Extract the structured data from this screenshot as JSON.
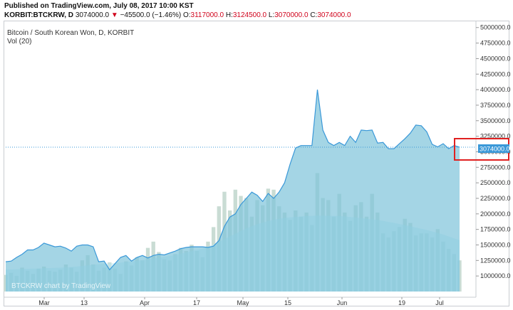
{
  "header": {
    "published": "Published on TradingView.com, July 08, 2017 10:00 KST",
    "symbol": "KORBIT:BTCKRW, D",
    "last": "3074000.0",
    "arrow": "▼",
    "change": "−45500.0 (−1.46%)",
    "o_label": "O:",
    "o_value": "3117000.0",
    "h_label": "H:",
    "h_value": "3124500.0",
    "l_label": "L:",
    "l_value": "3070000.0",
    "c_label": "C:",
    "c_value": "3074000.0"
  },
  "legend": {
    "title": "Bitcoin / South Korean Won, D, KORBIT",
    "volume": "Vol (20)"
  },
  "watermark": "BTCKRW chart by TradingView",
  "price_label": "3074000.0",
  "colors": {
    "line": "#3a98d8",
    "area": "#7ec3da",
    "volume_bars": "#c9dcd4",
    "volume_ma": "#bfe9f3",
    "price_line": "#3a98d8",
    "highlight_box": "#e02020"
  },
  "chart_data": {
    "type": "area",
    "title": "Bitcoin / South Korean Won, D, KORBIT",
    "ylim": [
      750000,
      5100000
    ],
    "y_axis_position": "right",
    "y_ticks": [
      "1000000.0",
      "1250000.0",
      "1500000.0",
      "1750000.0",
      "2000000.0",
      "2250000.0",
      "2500000.0",
      "2750000.0",
      "3000000.0",
      "3250000.0",
      "3500000.0",
      "3750000.0",
      "4000000.0",
      "4250000.0",
      "4500000.0",
      "4750000.0",
      "5000000.0"
    ],
    "x_ticks": [
      "Mar",
      "13",
      "Apr",
      "17",
      "May",
      "15",
      "Jun",
      "19",
      "Jul"
    ],
    "grid": false,
    "series": [
      {
        "name": "BTCKRW",
        "values": [
          1230000,
          1240000,
          1300000,
          1350000,
          1420000,
          1420000,
          1460000,
          1530000,
          1500000,
          1470000,
          1480000,
          1450000,
          1400000,
          1480000,
          1500000,
          1500000,
          1470000,
          1230000,
          1240000,
          1100000,
          1200000,
          1300000,
          1330000,
          1240000,
          1300000,
          1330000,
          1290000,
          1330000,
          1350000,
          1340000,
          1370000,
          1400000,
          1440000,
          1460000,
          1470000,
          1470000,
          1470000,
          1460000,
          1480000,
          1570000,
          1800000,
          1950000,
          2000000,
          2150000,
          2250000,
          2350000,
          2300000,
          2200000,
          2330000,
          2250000,
          2350000,
          2500000,
          2800000,
          3060000,
          3100000,
          3100000,
          3100000,
          4000000,
          3350000,
          3150000,
          3100000,
          3150000,
          3100000,
          3250000,
          3150000,
          3350000,
          3340000,
          3350000,
          3140000,
          3150000,
          3050000,
          3050000,
          3130000,
          3210000,
          3300000,
          3430000,
          3420000,
          3320000,
          3120000,
          3080000,
          3130000,
          3050000,
          3100000,
          3074000
        ],
        "color": "#3a98d8"
      }
    ],
    "volume": {
      "name": "Vol (20)",
      "values": [
        160000,
        180000,
        150000,
        230000,
        200000,
        170000,
        220000,
        240000,
        200000,
        190000,
        210000,
        260000,
        230000,
        190000,
        300000,
        350000,
        260000,
        200000,
        230000,
        280000,
        220000,
        170000,
        290000,
        250000,
        330000,
        300000,
        420000,
        480000,
        380000,
        310000,
        300000,
        360000,
        420000,
        390000,
        450000,
        390000,
        330000,
        480000,
        620000,
        820000,
        960000,
        780000,
        980000,
        920000,
        900000,
        720000,
        880000,
        830000,
        990000,
        980000,
        820000,
        760000,
        690000,
        780000,
        720000,
        760000,
        640000,
        1140000,
        900000,
        880000,
        720000,
        940000,
        760000,
        680000,
        830000,
        860000,
        720000,
        940000,
        760000,
        560000,
        520000,
        580000,
        620000,
        700000,
        660000,
        540000,
        560000,
        560000,
        520000,
        600000,
        480000,
        410000,
        360000,
        300000
      ],
      "ma_values": [
        210000,
        212000,
        214000,
        216000,
        218000,
        220000,
        222000,
        224000,
        226000,
        228000,
        230000,
        232000,
        236000,
        240000,
        246000,
        252000,
        258000,
        262000,
        266000,
        270000,
        274000,
        278000,
        284000,
        290000,
        296000,
        302000,
        310000,
        318000,
        326000,
        334000,
        342000,
        352000,
        364000,
        376000,
        388000,
        400000,
        414000,
        432000,
        454000,
        478000,
        504000,
        530000,
        556000,
        582000,
        606000,
        628000,
        648000,
        664000,
        678000,
        690000,
        700000,
        708000,
        714000,
        718000,
        722000,
        726000,
        728000,
        730000,
        730000,
        729000,
        728000,
        726000,
        722000,
        718000,
        712000,
        706000,
        700000,
        694000,
        688000,
        680000,
        670000,
        660000,
        650000,
        640000,
        628000,
        616000,
        604000,
        592000,
        578000,
        564000,
        548000,
        530000,
        512000,
        494000
      ]
    }
  }
}
